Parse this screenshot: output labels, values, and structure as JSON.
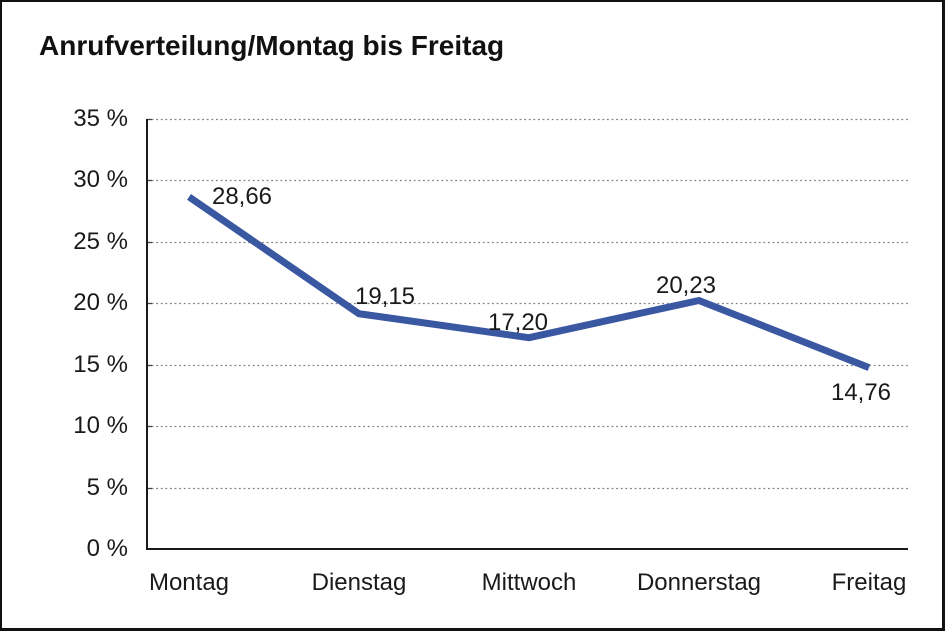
{
  "window": {
    "background_color": "#ffffff",
    "border_color": "#111111"
  },
  "header": {
    "title": "Anrufverteilung/Montag bis Freitag"
  },
  "chart_data": {
    "type": "line",
    "title": "Anrufverteilung/Montag bis Freitag",
    "categories": [
      "Montag",
      "Dienstag",
      "Mittwoch",
      "Donnerstag",
      "Freitag"
    ],
    "values": [
      28.66,
      19.15,
      17.2,
      20.23,
      14.76
    ],
    "point_labels": [
      "28,66",
      "19,15",
      "17,20",
      "20,23",
      "14,76"
    ],
    "xlabel": "",
    "ylabel": "",
    "ylim": [
      0,
      35
    ],
    "y_tick_step": 5,
    "y_tick_labels": [
      "0 %",
      "5 %",
      "10 %",
      "15 %",
      "20 %",
      "25 %",
      "30 %",
      "35 %"
    ],
    "grid": "horizontal-dotted",
    "legend": "none",
    "markers": "none",
    "line_color": "#3A57A2",
    "axis_color": "#1a1a1a",
    "gridline_color": "#808080",
    "label_color": "#1a1a1a"
  }
}
